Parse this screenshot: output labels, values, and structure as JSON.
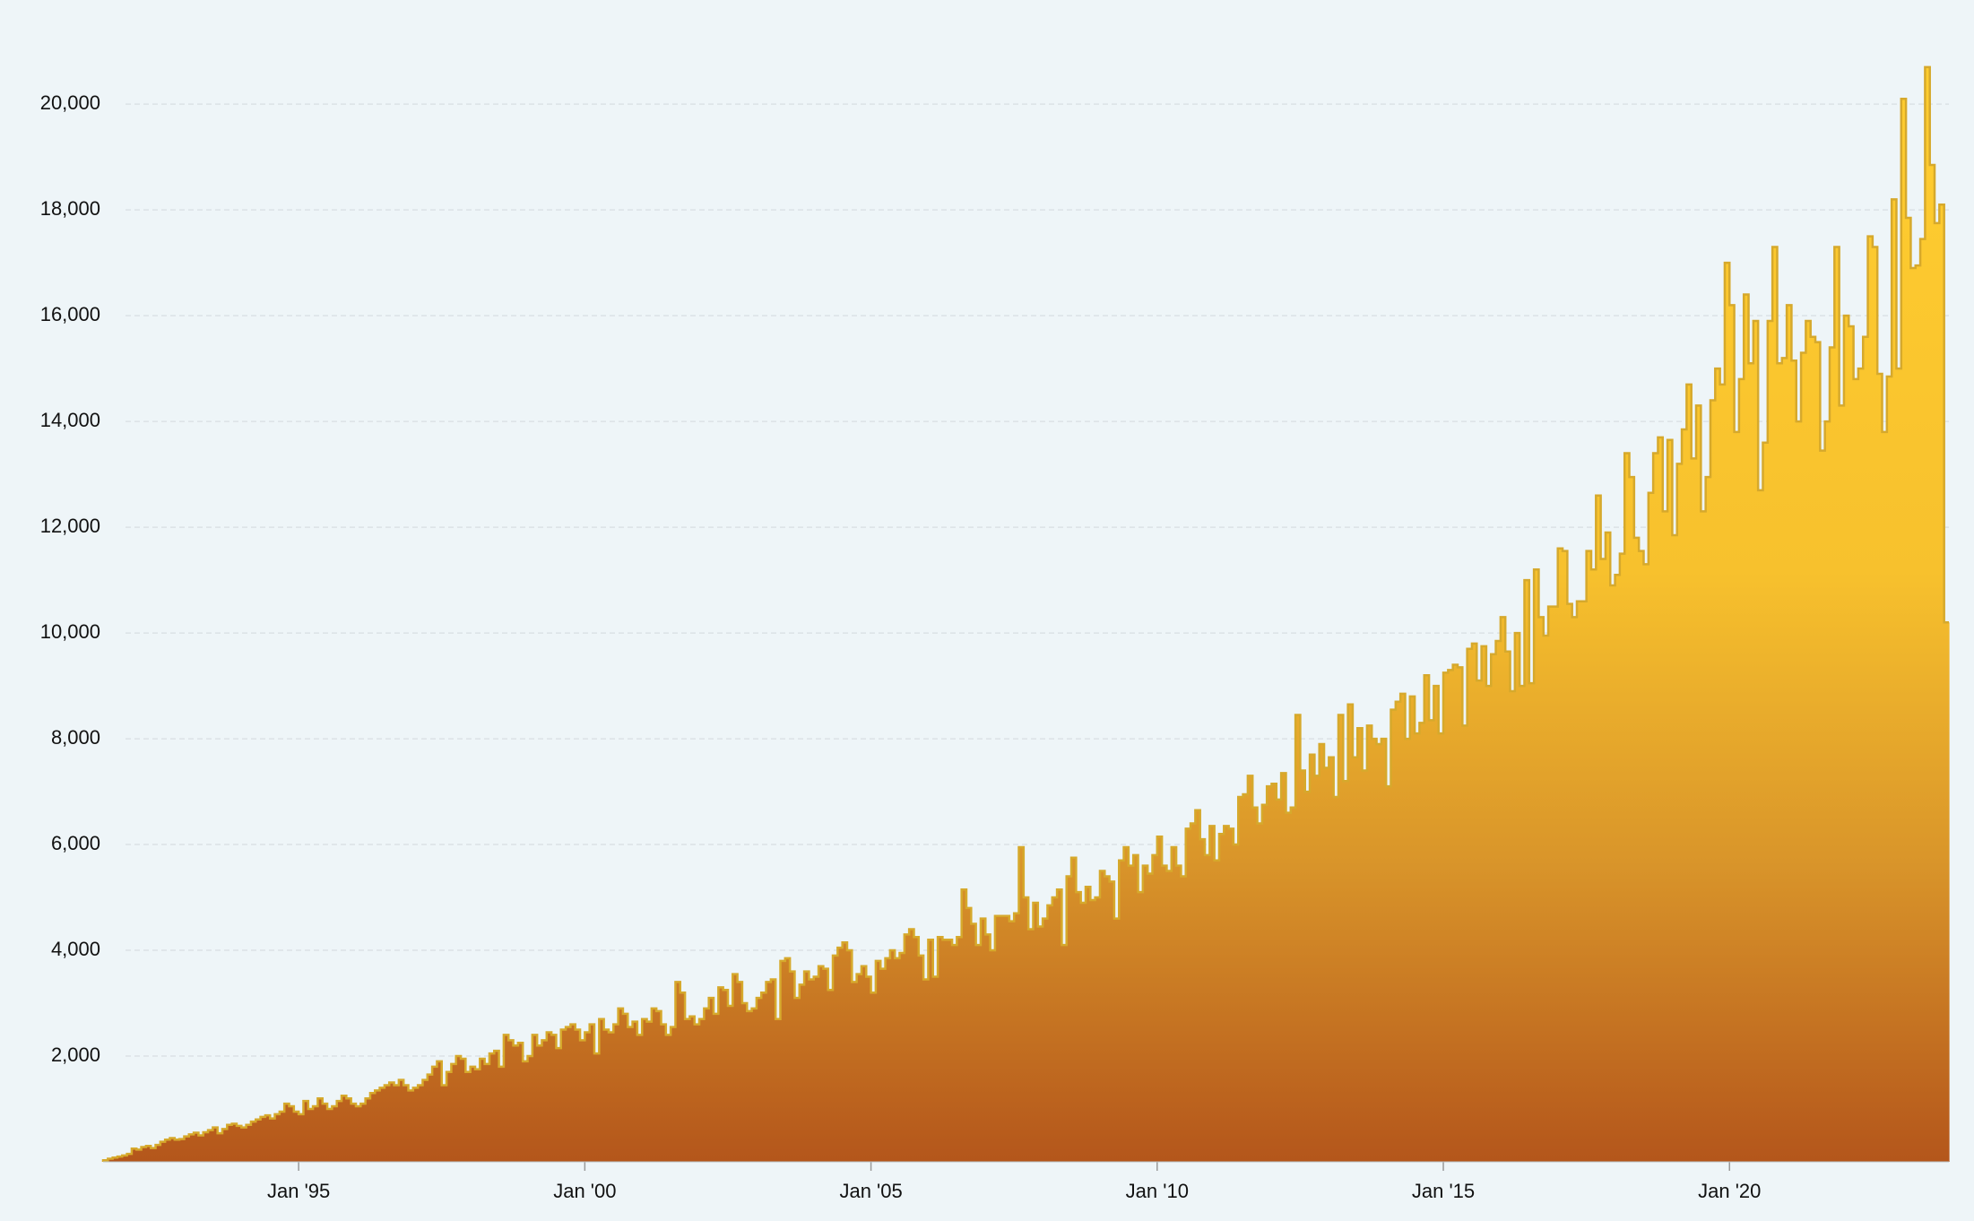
{
  "chart_data": {
    "type": "area",
    "step": true,
    "x": [
      "1991-08",
      "1991-09",
      "1991-10",
      "1991-11",
      "1991-12",
      "1992-01",
      "1992-02",
      "1992-03",
      "1992-04",
      "1992-05",
      "1992-06",
      "1992-07",
      "1992-08",
      "1992-09",
      "1992-10",
      "1992-11",
      "1992-12",
      "1993-01",
      "1993-02",
      "1993-03",
      "1993-04",
      "1993-05",
      "1993-06",
      "1993-07",
      "1993-08",
      "1993-09",
      "1993-10",
      "1993-11",
      "1993-12",
      "1994-01",
      "1994-02",
      "1994-03",
      "1994-04",
      "1994-05",
      "1994-06",
      "1994-07",
      "1994-08",
      "1994-09",
      "1994-10",
      "1994-11",
      "1994-12",
      "1995-01",
      "1995-02",
      "1995-03",
      "1995-04",
      "1995-05",
      "1995-06",
      "1995-07",
      "1995-08",
      "1995-09",
      "1995-10",
      "1995-11",
      "1995-12",
      "1996-01",
      "1996-02",
      "1996-03",
      "1996-04",
      "1996-05",
      "1996-06",
      "1996-07",
      "1996-08",
      "1996-09",
      "1996-10",
      "1996-11",
      "1996-12",
      "1997-01",
      "1997-02",
      "1997-03",
      "1997-04",
      "1997-05",
      "1997-06",
      "1997-07",
      "1997-08",
      "1997-09",
      "1997-10",
      "1997-11",
      "1997-12",
      "1998-01",
      "1998-02",
      "1998-03",
      "1998-04",
      "1998-05",
      "1998-06",
      "1998-07",
      "1998-08",
      "1998-09",
      "1998-10",
      "1998-11",
      "1998-12",
      "1999-01",
      "1999-02",
      "1999-03",
      "1999-04",
      "1999-05",
      "1999-06",
      "1999-07",
      "1999-08",
      "1999-09",
      "1999-10",
      "1999-11",
      "1999-12",
      "2000-01",
      "2000-02",
      "2000-03",
      "2000-04",
      "2000-05",
      "2000-06",
      "2000-07",
      "2000-08",
      "2000-09",
      "2000-10",
      "2000-11",
      "2000-12",
      "2001-01",
      "2001-02",
      "2001-03",
      "2001-04",
      "2001-05",
      "2001-06",
      "2001-07",
      "2001-08",
      "2001-09",
      "2001-10",
      "2001-11",
      "2001-12",
      "2002-01",
      "2002-02",
      "2002-03",
      "2002-04",
      "2002-05",
      "2002-06",
      "2002-07",
      "2002-08",
      "2002-09",
      "2002-10",
      "2002-11",
      "2002-12",
      "2003-01",
      "2003-02",
      "2003-03",
      "2003-04",
      "2003-05",
      "2003-06",
      "2003-07",
      "2003-08",
      "2003-09",
      "2003-10",
      "2003-11",
      "2003-12",
      "2004-01",
      "2004-02",
      "2004-03",
      "2004-04",
      "2004-05",
      "2004-06",
      "2004-07",
      "2004-08",
      "2004-09",
      "2004-10",
      "2004-11",
      "2004-12",
      "2005-01",
      "2005-02",
      "2005-03",
      "2005-04",
      "2005-05",
      "2005-06",
      "2005-07",
      "2005-08",
      "2005-09",
      "2005-10",
      "2005-11",
      "2005-12",
      "2006-01",
      "2006-02",
      "2006-03",
      "2006-04",
      "2006-05",
      "2006-06",
      "2006-07",
      "2006-08",
      "2006-09",
      "2006-10",
      "2006-11",
      "2006-12",
      "2007-01",
      "2007-02",
      "2007-03",
      "2007-04",
      "2007-05",
      "2007-06",
      "2007-07",
      "2007-08",
      "2007-09",
      "2007-10",
      "2007-11",
      "2007-12",
      "2008-01",
      "2008-02",
      "2008-03",
      "2008-04",
      "2008-05",
      "2008-06",
      "2008-07",
      "2008-08",
      "2008-09",
      "2008-10",
      "2008-11",
      "2008-12",
      "2009-01",
      "2009-02",
      "2009-03",
      "2009-04",
      "2009-05",
      "2009-06",
      "2009-07",
      "2009-08",
      "2009-09",
      "2009-10",
      "2009-11",
      "2009-12",
      "2010-01",
      "2010-02",
      "2010-03",
      "2010-04",
      "2010-05",
      "2010-06",
      "2010-07",
      "2010-08",
      "2010-09",
      "2010-10",
      "2010-11",
      "2010-12",
      "2011-01",
      "2011-02",
      "2011-03",
      "2011-04",
      "2011-05",
      "2011-06",
      "2011-07",
      "2011-08",
      "2011-09",
      "2011-10",
      "2011-11",
      "2011-12",
      "2012-01",
      "2012-02",
      "2012-03",
      "2012-04",
      "2012-05",
      "2012-06",
      "2012-07",
      "2012-08",
      "2012-09",
      "2012-10",
      "2012-11",
      "2012-12",
      "2013-01",
      "2013-02",
      "2013-03",
      "2013-04",
      "2013-05",
      "2013-06",
      "2013-07",
      "2013-08",
      "2013-09",
      "2013-10",
      "2013-11",
      "2013-12",
      "2014-01",
      "2014-02",
      "2014-03",
      "2014-04",
      "2014-05",
      "2014-06",
      "2014-07",
      "2014-08",
      "2014-09",
      "2014-10",
      "2014-11",
      "2014-12",
      "2015-01",
      "2015-02",
      "2015-03",
      "2015-04",
      "2015-05",
      "2015-06",
      "2015-07",
      "2015-08",
      "2015-09",
      "2015-10",
      "2015-11",
      "2015-12",
      "2016-01",
      "2016-02",
      "2016-03",
      "2016-04",
      "2016-05",
      "2016-06",
      "2016-07",
      "2016-08",
      "2016-09",
      "2016-10",
      "2016-11",
      "2016-12",
      "2017-01",
      "2017-02",
      "2017-03",
      "2017-04",
      "2017-05",
      "2017-06",
      "2017-07",
      "2017-08",
      "2017-09",
      "2017-10",
      "2017-11",
      "2017-12",
      "2018-01",
      "2018-02",
      "2018-03",
      "2018-04",
      "2018-05",
      "2018-06",
      "2018-07",
      "2018-08",
      "2018-09",
      "2018-10",
      "2018-11",
      "2018-12",
      "2019-01",
      "2019-02",
      "2019-03",
      "2019-04",
      "2019-05",
      "2019-06",
      "2019-07",
      "2019-08",
      "2019-09",
      "2019-10",
      "2019-11",
      "2019-12",
      "2020-01",
      "2020-02",
      "2020-03",
      "2020-04",
      "2020-05",
      "2020-06",
      "2020-07",
      "2020-08",
      "2020-09",
      "2020-10",
      "2020-11",
      "2020-12",
      "2021-01",
      "2021-02",
      "2021-03",
      "2021-04",
      "2021-05",
      "2021-06",
      "2021-07",
      "2021-08",
      "2021-09",
      "2021-10",
      "2021-11",
      "2021-12",
      "2022-01",
      "2022-02",
      "2022-03",
      "2022-04",
      "2022-05",
      "2022-06",
      "2022-07",
      "2022-08",
      "2022-09",
      "2022-10",
      "2022-11",
      "2022-12",
      "2023-01",
      "2023-02",
      "2023-03",
      "2023-04",
      "2023-05",
      "2023-06",
      "2023-07",
      "2023-08",
      "2023-09",
      "2023-10"
    ],
    "values": [
      30,
      60,
      80,
      100,
      120,
      150,
      250,
      230,
      280,
      300,
      260,
      320,
      380,
      420,
      450,
      420,
      430,
      480,
      520,
      550,
      500,
      560,
      600,
      650,
      540,
      620,
      700,
      720,
      680,
      650,
      700,
      760,
      800,
      850,
      880,
      820,
      900,
      950,
      1100,
      1050,
      950,
      900,
      1150,
      1000,
      1050,
      1200,
      1100,
      1000,
      1050,
      1150,
      1250,
      1200,
      1100,
      1050,
      1100,
      1200,
      1300,
      1350,
      1400,
      1450,
      1500,
      1450,
      1550,
      1450,
      1350,
      1400,
      1450,
      1550,
      1650,
      1800,
      1900,
      1450,
      1700,
      1850,
      2000,
      1950,
      1700,
      1800,
      1750,
      1950,
      1850,
      2050,
      2100,
      1800,
      2400,
      2300,
      2200,
      2250,
      1900,
      2000,
      2400,
      2200,
      2300,
      2450,
      2400,
      2150,
      2500,
      2550,
      2600,
      2500,
      2300,
      2450,
      2600,
      2050,
      2700,
      2500,
      2450,
      2600,
      2900,
      2800,
      2550,
      2650,
      2400,
      2700,
      2650,
      2900,
      2850,
      2600,
      2400,
      2550,
      3400,
      3200,
      2700,
      2750,
      2600,
      2700,
      2900,
      3100,
      2800,
      3300,
      3250,
      2950,
      3550,
      3400,
      3000,
      2850,
      2900,
      3100,
      3200,
      3400,
      3450,
      2700,
      3800,
      3850,
      3600,
      3100,
      3350,
      3600,
      3450,
      3500,
      3700,
      3650,
      3250,
      3900,
      4050,
      4150,
      4000,
      3400,
      3550,
      3700,
      3500,
      3200,
      3800,
      3650,
      3850,
      4000,
      3850,
      3950,
      4300,
      4400,
      4250,
      3900,
      3450,
      4200,
      3500,
      4250,
      4200,
      4200,
      4100,
      4250,
      5150,
      4800,
      4500,
      4100,
      4600,
      4300,
      4000,
      4650,
      4650,
      4650,
      4550,
      4700,
      5950,
      5000,
      4400,
      4900,
      4450,
      4600,
      4850,
      5000,
      5150,
      4100,
      5400,
      5750,
      5100,
      4900,
      5200,
      4950,
      5000,
      5500,
      5400,
      5300,
      4600,
      5700,
      5950,
      5600,
      5800,
      5100,
      5600,
      5450,
      5800,
      6150,
      5600,
      5500,
      5950,
      5600,
      5400,
      6300,
      6400,
      6650,
      6100,
      5800,
      6350,
      5700,
      6200,
      6350,
      6300,
      6000,
      6900,
      6950,
      7300,
      6700,
      6400,
      6750,
      7100,
      7150,
      6850,
      7350,
      6600,
      6700,
      8450,
      7400,
      7000,
      7700,
      7300,
      7900,
      7450,
      7650,
      6900,
      8450,
      7200,
      8650,
      7650,
      8200,
      7400,
      8250,
      8000,
      7900,
      8000,
      7100,
      8550,
      8700,
      8850,
      8000,
      8800,
      8100,
      8300,
      9200,
      8350,
      9000,
      8100,
      9250,
      9300,
      9400,
      9350,
      8250,
      9700,
      9800,
      9100,
      9750,
      9000,
      9600,
      9850,
      10300,
      9650,
      8900,
      10000,
      9000,
      11000,
      9050,
      11200,
      10300,
      9950,
      10500,
      10500,
      11600,
      11550,
      10550,
      10300,
      10600,
      10600,
      11550,
      11200,
      12600,
      11400,
      11900,
      10900,
      11100,
      11500,
      13400,
      12950,
      11800,
      11550,
      11300,
      12650,
      13400,
      13700,
      12300,
      13650,
      11850,
      13200,
      13850,
      14700,
      13300,
      14300,
      12300,
      12950,
      14400,
      15000,
      14700,
      17000,
      16200,
      13800,
      14800,
      16400,
      15100,
      15900,
      12700,
      13600,
      15900,
      17300,
      15100,
      15200,
      16200,
      15150,
      14000,
      15300,
      15900,
      15600,
      15500,
      13450,
      14000,
      15400,
      17300,
      14300,
      16000,
      15800,
      14800,
      15000,
      15600,
      17500,
      17300,
      14900,
      13800,
      14850,
      18200,
      15000,
      20100,
      17850,
      16900,
      16950,
      17450,
      20700,
      18850,
      17750,
      18100,
      10200
    ],
    "xlim": [
      "1991-08",
      "2023-11"
    ],
    "xticks": [
      {
        "value": "1995-01",
        "label": "Jan '95"
      },
      {
        "value": "2000-01",
        "label": "Jan '00"
      },
      {
        "value": "2005-01",
        "label": "Jan '05"
      },
      {
        "value": "2010-01",
        "label": "Jan '10"
      },
      {
        "value": "2015-01",
        "label": "Jan '15"
      },
      {
        "value": "2020-01",
        "label": "Jan '20"
      }
    ],
    "ylim": [
      0,
      21800
    ],
    "yticks": [
      {
        "value": 2000,
        "label": "2,000"
      },
      {
        "value": 4000,
        "label": "4,000"
      },
      {
        "value": 6000,
        "label": "6,000"
      },
      {
        "value": 8000,
        "label": "8,000"
      },
      {
        "value": 10000,
        "label": "10,000"
      },
      {
        "value": 12000,
        "label": "12,000"
      },
      {
        "value": 14000,
        "label": "14,000"
      },
      {
        "value": 16000,
        "label": "16,000"
      },
      {
        "value": 18000,
        "label": "18,000"
      },
      {
        "value": 20000,
        "label": "20,000"
      }
    ],
    "grid": true,
    "color": "#d6a92c"
  }
}
